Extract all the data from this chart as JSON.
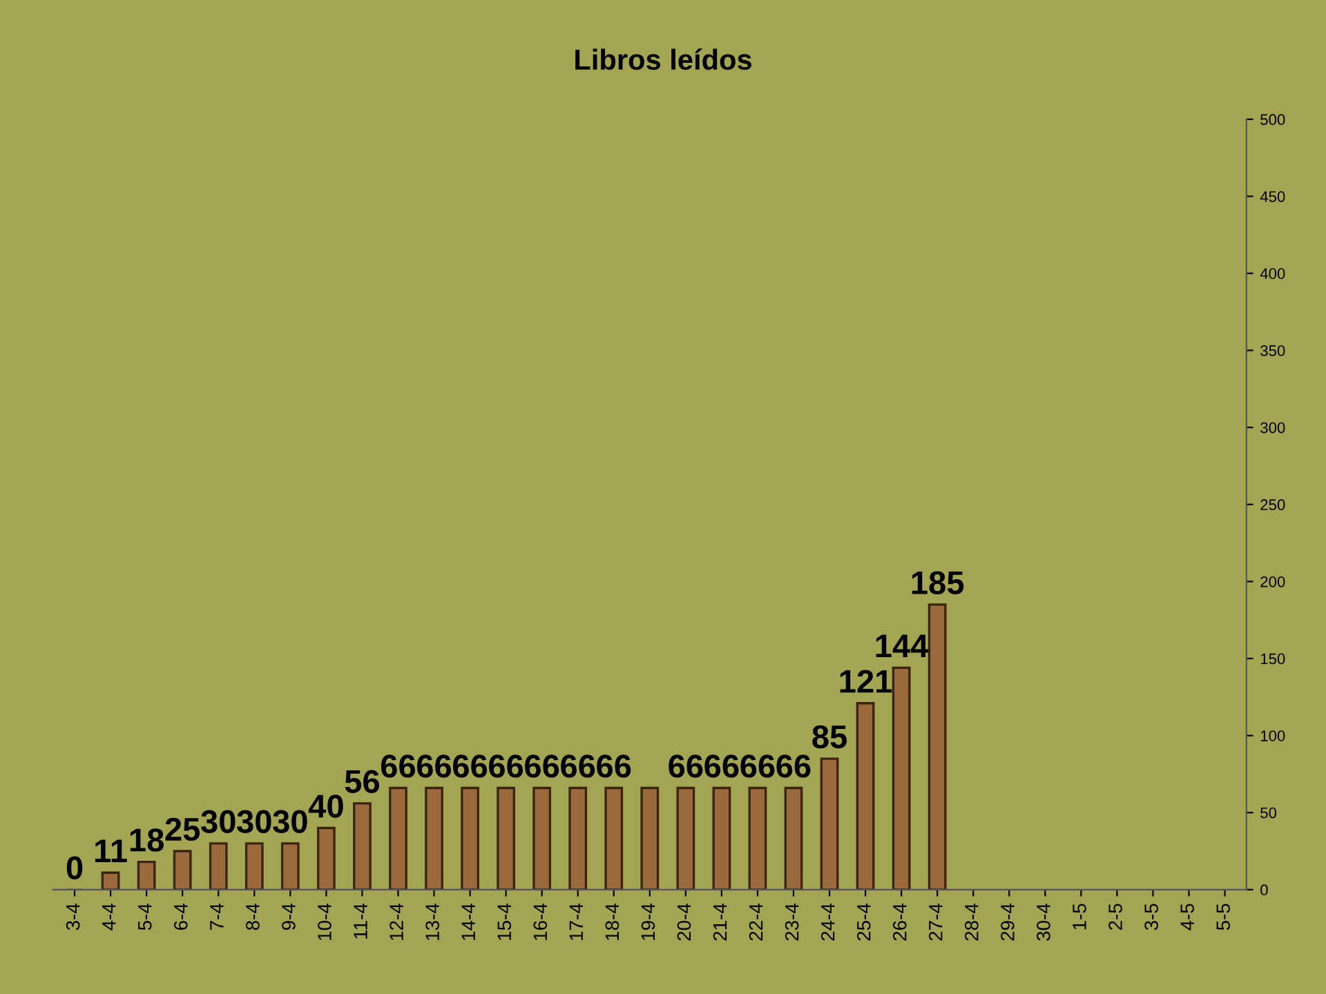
{
  "chart_data": {
    "type": "bar",
    "title": "Libros leídos",
    "categories": [
      "3-4",
      "4-4",
      "5-4",
      "6-4",
      "7-4",
      "8-4",
      "9-4",
      "10-4",
      "11-4",
      "12-4",
      "13-4",
      "14-4",
      "15-4",
      "16-4",
      "17-4",
      "18-4",
      "19-4",
      "20-4",
      "21-4",
      "22-4",
      "23-4",
      "24-4",
      "25-4",
      "26-4",
      "27-4",
      "28-4",
      "29-4",
      "30-4",
      "1-5",
      "2-5",
      "3-5",
      "4-5",
      "5-5"
    ],
    "values": [
      0,
      11,
      18,
      25,
      30,
      30,
      30,
      40,
      56,
      66,
      66,
      66,
      66,
      66,
      66,
      66,
      66,
      66,
      66,
      66,
      66,
      85,
      121,
      144,
      185,
      null,
      null,
      null,
      null,
      null,
      null,
      null,
      null
    ],
    "value_labels": [
      "0",
      "11",
      "18",
      "25",
      "30",
      "30",
      "30",
      "40",
      "56",
      "66",
      "66",
      "66",
      "66",
      "66",
      "66",
      "66",
      null,
      "66",
      "66",
      "66",
      "66",
      "85",
      "121",
      "144",
      "185",
      null,
      null,
      null,
      null,
      null,
      null,
      null,
      null
    ],
    "color": "#9a6a3c",
    "ylim": [
      0,
      500
    ],
    "yticks": [
      0,
      50,
      100,
      150,
      200,
      250,
      300,
      350,
      400,
      450,
      500
    ],
    "grid": false,
    "legend": false
  }
}
